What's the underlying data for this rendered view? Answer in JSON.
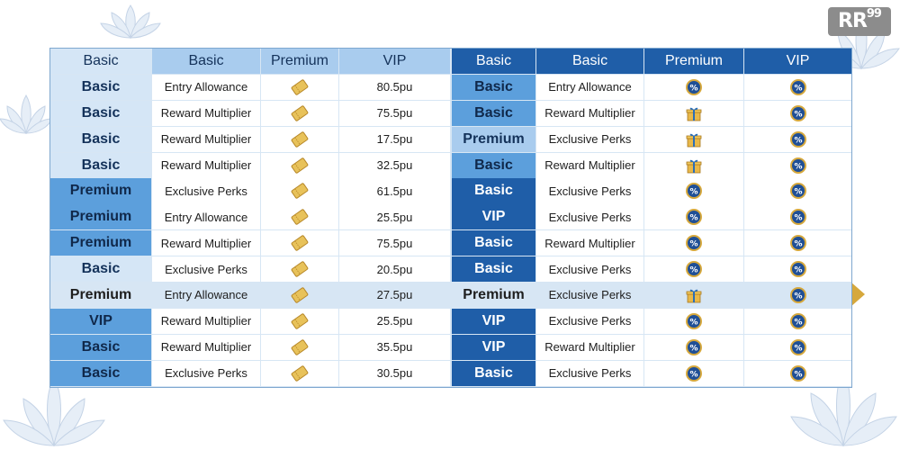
{
  "logo": {
    "text": "RR",
    "sup": "99"
  },
  "left": {
    "headers": [
      "Basic",
      "Basic",
      "Premium",
      "VIP"
    ],
    "rows": [
      {
        "tier": "Basic",
        "perk": "Entry Allowance",
        "value": "80.5pu"
      },
      {
        "tier": "Basic",
        "perk": "Reward Multiplier",
        "value": "75.5pu"
      },
      {
        "tier": "Basic",
        "perk": "Reward Multiplier",
        "value": "17.5pu"
      },
      {
        "tier": "Basic",
        "perk": "Reward Multiplier",
        "value": "32.5pu"
      },
      {
        "tier": "Premium",
        "perk": "Exclusive Perks",
        "value": "61.5pu"
      },
      {
        "tier": "Premium",
        "perk": "Entry Allowance",
        "value": "25.5pu"
      },
      {
        "tier": "Premium",
        "perk": "Reward Multiplier",
        "value": "75.5pu"
      },
      {
        "tier": "Basic",
        "perk": "Exclusive Perks",
        "value": "20.5pu"
      },
      {
        "tier": "Premium",
        "perk": "Entry Allowance",
        "value": "27.5pu"
      },
      {
        "tier": "VIP",
        "perk": "Reward Multiplier",
        "value": "25.5pu"
      },
      {
        "tier": "Basic",
        "perk": "Reward Multiplier",
        "value": "35.5pu"
      },
      {
        "tier": "Basic",
        "perk": "Exclusive Perks",
        "value": "30.5pu"
      }
    ]
  },
  "right": {
    "headers": [
      "Basic",
      "Basic",
      "Premium",
      "VIP"
    ],
    "rows": [
      {
        "tier": "Basic",
        "perk": "Entry Allowance",
        "premium_icon": "percent-coin-icon"
      },
      {
        "tier": "Basic",
        "perk": "Reward Multiplier",
        "premium_icon": "gift-icon"
      },
      {
        "tier": "Premium",
        "perk": "Exclusive Perks",
        "premium_icon": "gift-icon"
      },
      {
        "tier": "Basic",
        "perk": "Reward Multiplier",
        "premium_icon": "gift-icon"
      },
      {
        "tier": "Basic",
        "perk": "Exclusive Perks",
        "premium_icon": "percent-coin-icon"
      },
      {
        "tier": "VIP",
        "perk": "Exclusive Perks",
        "premium_icon": "percent-coin-icon"
      },
      {
        "tier": "Basic",
        "perk": "Reward Multiplier",
        "premium_icon": "percent-coin-icon"
      },
      {
        "tier": "Basic",
        "perk": "Exclusive Perks",
        "premium_icon": "percent-coin-icon"
      },
      {
        "tier": "Premium",
        "perk": "Exclusive Perks",
        "premium_icon": "gift-icon"
      },
      {
        "tier": "VIP",
        "perk": "Exclusive Perks",
        "premium_icon": "percent-coin-icon"
      },
      {
        "tier": "VIP",
        "perk": "Reward Multiplier",
        "premium_icon": "percent-coin-icon"
      },
      {
        "tier": "Basic",
        "perk": "Exclusive Perks",
        "premium_icon": "percent-coin-icon"
      }
    ]
  },
  "highlight_row": 8,
  "colors": {
    "gold": "#d6a83c",
    "navy": "#1f5ea8",
    "light_blue": "#a9ccee"
  }
}
